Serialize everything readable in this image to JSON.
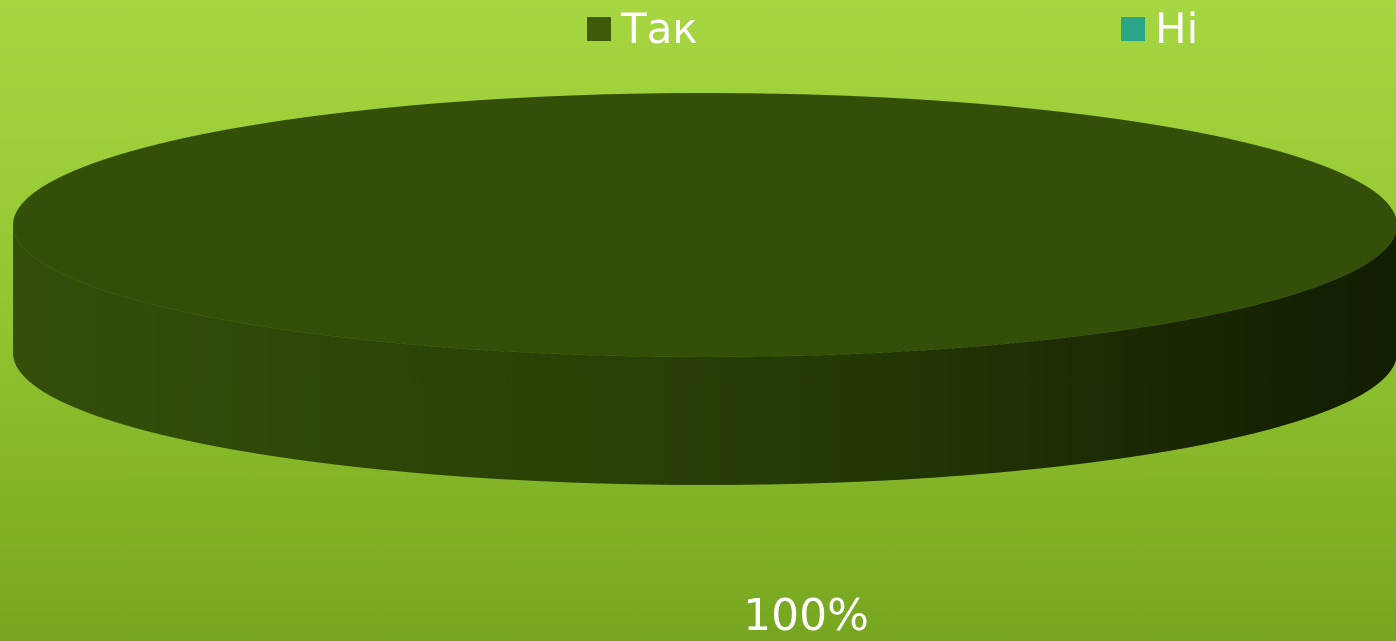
{
  "chart_data": {
    "type": "pie",
    "title": "",
    "categories": [
      "Так",
      "Ні"
    ],
    "values": [
      100,
      0
    ],
    "colors": [
      "#3f5a08",
      "#2aa585"
    ],
    "data_labels": [
      "100%"
    ],
    "legend_position": "top"
  },
  "legend": [
    {
      "label": "Так",
      "color": "#3f5a08"
    },
    {
      "label": "Ні",
      "color": "#2aa585"
    }
  ]
}
